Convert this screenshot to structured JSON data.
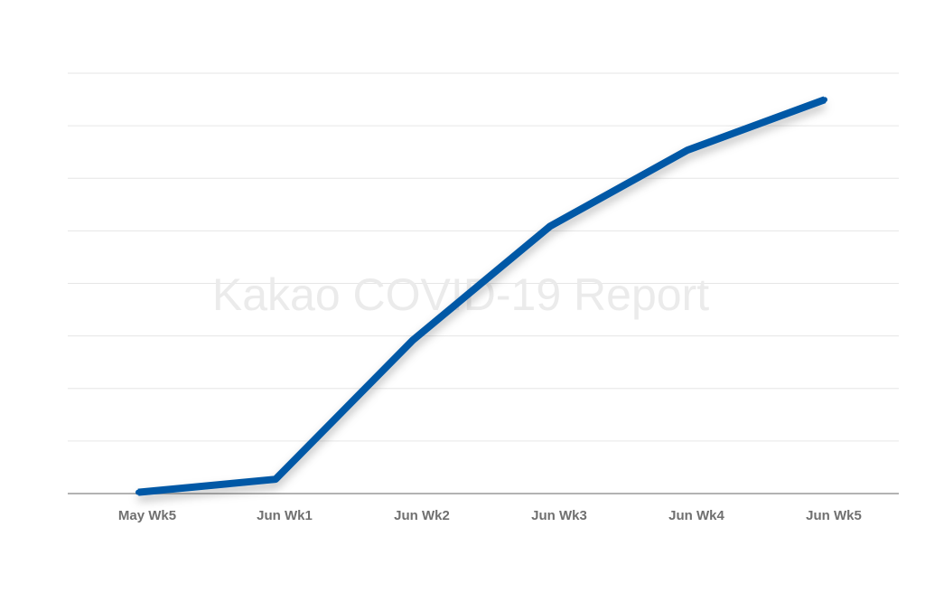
{
  "watermark": "Kakao COVID-19 Report",
  "chart_data": {
    "type": "line",
    "title": "",
    "xlabel": "",
    "ylabel": "",
    "categories": [
      "May Wk5",
      "Jun Wk1",
      "Jun Wk2",
      "Jun Wk3",
      "Jun Wk4",
      "Jun Wk5"
    ],
    "series": [
      {
        "color": "#0058a6",
        "values": [
          0.3,
          3.4,
          36.5,
          63.6,
          81.7,
          93.7
        ]
      }
    ],
    "ylim": [
      0,
      100
    ],
    "grid": true,
    "legend": "none"
  }
}
